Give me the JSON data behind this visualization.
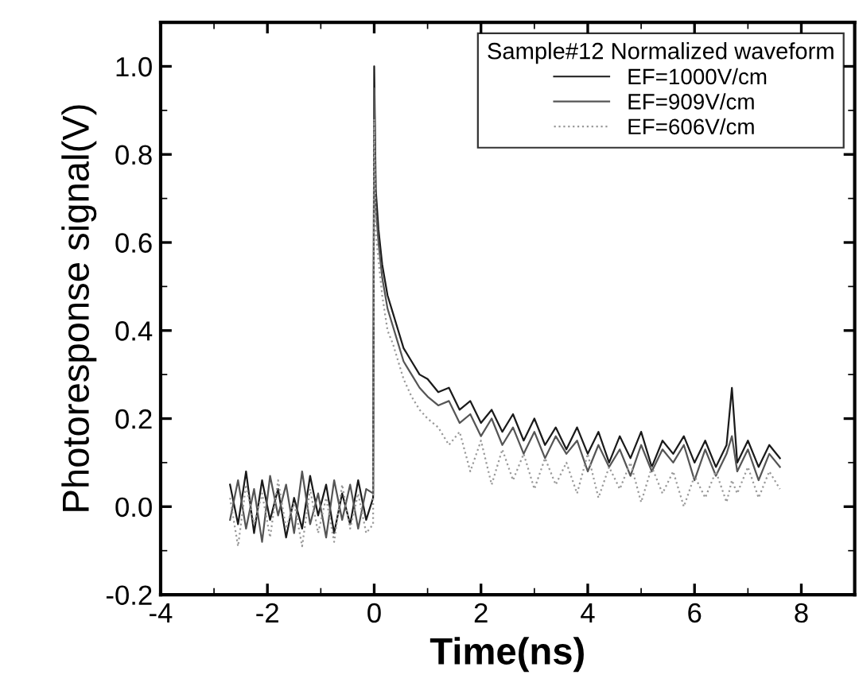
{
  "chart_data": {
    "type": "line",
    "xlabel": "Time(ns)",
    "ylabel": "Photoresponse signal(V)",
    "legend_title": "Sample#12 Normalized waveform",
    "legend": "top right",
    "grid": false,
    "x": [
      -2.7,
      -2.55,
      -2.4,
      -2.25,
      -2.1,
      -1.95,
      -1.8,
      -1.65,
      -1.5,
      -1.35,
      -1.2,
      -1.05,
      -0.9,
      -0.75,
      -0.6,
      -0.45,
      -0.3,
      -0.15,
      -0.02,
      0,
      0.03,
      0.08,
      0.15,
      0.25,
      0.35,
      0.45,
      0.55,
      0.7,
      0.85,
      1.0,
      1.2,
      1.4,
      1.6,
      1.8,
      2.0,
      2.2,
      2.4,
      2.6,
      2.8,
      3.0,
      3.2,
      3.4,
      3.6,
      3.8,
      4.0,
      4.2,
      4.4,
      4.6,
      4.8,
      5.0,
      5.2,
      5.4,
      5.6,
      5.8,
      6.0,
      6.2,
      6.4,
      6.6,
      6.7,
      6.8,
      7.0,
      7.2,
      7.4,
      7.6
    ],
    "series": [
      {
        "name": "EF=1000V/cm",
        "color": "#1a1a1a",
        "line_style": "solid",
        "values": [
          0.05,
          -0.04,
          0.08,
          -0.06,
          0.06,
          -0.03,
          0.04,
          -0.07,
          0.02,
          -0.05,
          0.07,
          -0.02,
          0.05,
          -0.06,
          0.03,
          -0.04,
          0.06,
          -0.03,
          0.02,
          1.0,
          0.72,
          0.63,
          0.55,
          0.48,
          0.44,
          0.4,
          0.36,
          0.33,
          0.3,
          0.29,
          0.26,
          0.27,
          0.22,
          0.24,
          0.19,
          0.22,
          0.17,
          0.21,
          0.15,
          0.2,
          0.14,
          0.18,
          0.13,
          0.18,
          0.12,
          0.17,
          0.1,
          0.16,
          0.11,
          0.17,
          0.09,
          0.15,
          0.12,
          0.16,
          0.1,
          0.15,
          0.09,
          0.14,
          0.27,
          0.1,
          0.15,
          0.09,
          0.14,
          0.11
        ]
      },
      {
        "name": "EF=909V/cm",
        "color": "#555555",
        "line_style": "solid",
        "values": [
          -0.03,
          0.06,
          -0.05,
          0.04,
          -0.08,
          0.07,
          -0.02,
          0.05,
          -0.06,
          0.08,
          -0.04,
          0.03,
          -0.07,
          0.06,
          -0.03,
          0.05,
          -0.05,
          0.04,
          0.03,
          0.95,
          0.68,
          0.6,
          0.52,
          0.45,
          0.41,
          0.37,
          0.33,
          0.3,
          0.27,
          0.25,
          0.23,
          0.24,
          0.19,
          0.21,
          0.16,
          0.2,
          0.14,
          0.18,
          0.12,
          0.17,
          0.11,
          0.16,
          0.12,
          0.15,
          0.08,
          0.14,
          0.09,
          0.13,
          0.07,
          0.14,
          0.08,
          0.13,
          0.1,
          0.14,
          0.06,
          0.13,
          0.07,
          0.12,
          0.16,
          0.08,
          0.13,
          0.06,
          0.12,
          0.09
        ]
      },
      {
        "name": "EF=606V/cm",
        "color": "#999999",
        "line_style": "dotted",
        "values": [
          0.02,
          -0.09,
          0.05,
          -0.04,
          0.03,
          -0.07,
          0.06,
          -0.05,
          0.01,
          -0.09,
          0.04,
          -0.06,
          0.02,
          -0.08,
          0.05,
          -0.05,
          0.03,
          -0.06,
          -0.04,
          0.88,
          0.62,
          0.56,
          0.48,
          0.4,
          0.37,
          0.33,
          0.29,
          0.25,
          0.22,
          0.2,
          0.18,
          0.14,
          0.17,
          0.08,
          0.15,
          0.05,
          0.13,
          0.06,
          0.12,
          0.04,
          0.11,
          0.05,
          0.1,
          0.03,
          0.12,
          0.02,
          0.09,
          0.04,
          0.1,
          0.01,
          0.09,
          0.03,
          0.08,
          0.0,
          0.07,
          0.02,
          0.08,
          0.01,
          0.06,
          0.03,
          0.09,
          0.02,
          0.08,
          0.04
        ]
      }
    ],
    "xlim": [
      -4,
      9
    ],
    "xticks": [
      -4,
      -2,
      0,
      2,
      4,
      6,
      8
    ],
    "ylim": [
      -0.2,
      1.1
    ],
    "yticks": [
      {
        "value": -0.2,
        "label": "-0.2"
      },
      {
        "value": 0,
        "label": "0.0"
      },
      {
        "value": 0.2,
        "label": "0.2"
      },
      {
        "value": 0.4,
        "label": "0.4"
      },
      {
        "value": 0.6,
        "label": "0.6"
      },
      {
        "value": 0.8,
        "label": "0.8"
      },
      {
        "value": 1.0,
        "label": "1.0"
      }
    ]
  }
}
